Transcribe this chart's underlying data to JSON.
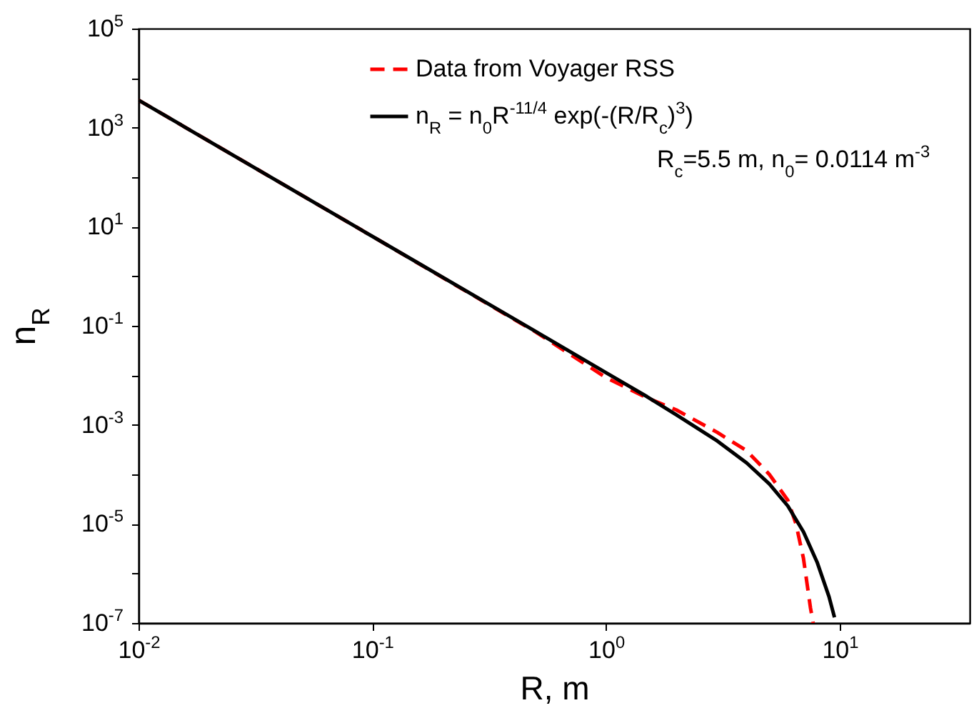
{
  "chart_data": {
    "type": "line",
    "xlabel": "R, m",
    "ylabel": "n$_{R}$",
    "log": "xy",
    "xlim": [
      0.01,
      36
    ],
    "ylim": [
      1e-07,
      100000
    ],
    "xticks": [
      {
        "value": 0.01,
        "label": "10$^{-2}$"
      },
      {
        "value": 0.1,
        "label": "10$^{-1}$"
      },
      {
        "value": 1,
        "label": "10$^{0}$"
      },
      {
        "value": 10,
        "label": "10$^{1}$"
      }
    ],
    "yticks": [
      {
        "value": 1e-07,
        "label": "10$^{-7}$"
      },
      {
        "value": 1e-06,
        "label": null
      },
      {
        "value": 1e-05,
        "label": "10$^{-5}$"
      },
      {
        "value": 0.0001,
        "label": null
      },
      {
        "value": 0.001,
        "label": "10$^{-3}$"
      },
      {
        "value": 0.01,
        "label": null
      },
      {
        "value": 0.1,
        "label": "10$^{-1}$"
      },
      {
        "value": 1,
        "label": null
      },
      {
        "value": 10,
        "label": "10$^{1}$"
      },
      {
        "value": 100,
        "label": null
      },
      {
        "value": 1000,
        "label": "10$^{3}$"
      },
      {
        "value": 10000,
        "label": null
      },
      {
        "value": 100000,
        "label": "10$^{5}$"
      }
    ],
    "legend": "top right",
    "grid": false,
    "series": [
      {
        "name": "Data from Voyager RSS",
        "color": "#ff0000",
        "line_style": "dashed",
        "x": [
          0.01,
          0.1,
          0.5,
          1,
          1.5,
          2,
          3,
          4,
          5,
          6,
          6.5,
          7,
          7.5,
          7.7
        ],
        "values": [
          3600,
          6.4,
          0.075,
          0.009,
          0.0035,
          0.002,
          0.0007,
          0.0003,
          0.0001,
          3e-05,
          1e-05,
          2e-06,
          2e-07,
          1e-07
        ]
      },
      {
        "name": "n$_{R}$ = n$_{0}$R$^{-11/4}$ exp(-(R/R$_{c}$)$^{3}$)",
        "color": "#000000",
        "line_style": "solid",
        "x": [
          0.01,
          0.1,
          0.5,
          1,
          1.5,
          2,
          3,
          4,
          5,
          6,
          7,
          8,
          9,
          9.5
        ],
        "values": [
          3600,
          6.4,
          0.077,
          0.0113,
          0.0037,
          0.0016,
          0.00047,
          0.00017,
          6.4e-05,
          2.3e-05,
          6.9e-06,
          1.7e-06,
          3.4e-07,
          1.3e-07
        ]
      }
    ],
    "annotations": [
      "R$_{c}$=5.5 m, n$_{0}$= 0.0114 m$^{-3}$"
    ]
  }
}
